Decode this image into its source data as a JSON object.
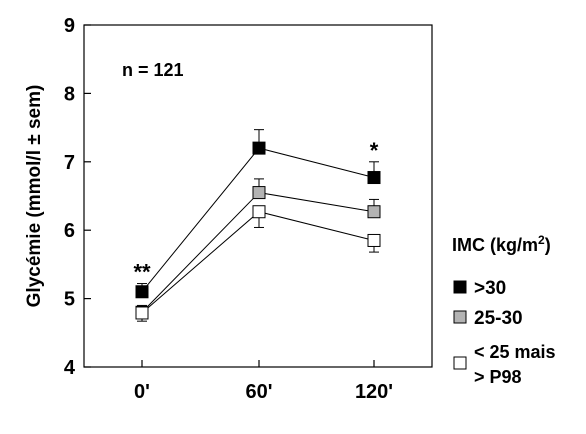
{
  "chart_data": {
    "type": "line",
    "ylabel": "Glycémie (mmol/l ± sem)",
    "annotation": "n = 121",
    "categories": [
      "0'",
      "60'",
      "120'"
    ],
    "ylim": [
      4,
      9
    ],
    "yticks": [
      "4",
      "5",
      "6",
      "7",
      "8",
      "9"
    ],
    "series": [
      {
        "name": ">30",
        "values": [
          5.1,
          7.2,
          6.77
        ],
        "err": [
          0.12,
          0.27,
          0.23
        ],
        "color": "#000000"
      },
      {
        "name": "25-30",
        "values": [
          4.8,
          6.55,
          6.27
        ],
        "err": [
          0.1,
          0.2,
          0.18
        ],
        "color": "#b3b3b3"
      },
      {
        "name": "<25 mais >P98",
        "name_lines": [
          "< 25 mais",
          "> P98"
        ],
        "values": [
          4.79,
          6.27,
          5.85
        ],
        "err": [
          0.12,
          0.23,
          0.17
        ],
        "color": "#ffffff"
      }
    ],
    "significance": [
      {
        "category_index": 0,
        "label": "**"
      },
      {
        "category_index": 2,
        "label": "*"
      }
    ],
    "legend_title": "IMC (kg/m²)",
    "legend_title_parts": [
      "IMC (kg/m",
      "2",
      ")"
    ],
    "legend_position": "right"
  }
}
